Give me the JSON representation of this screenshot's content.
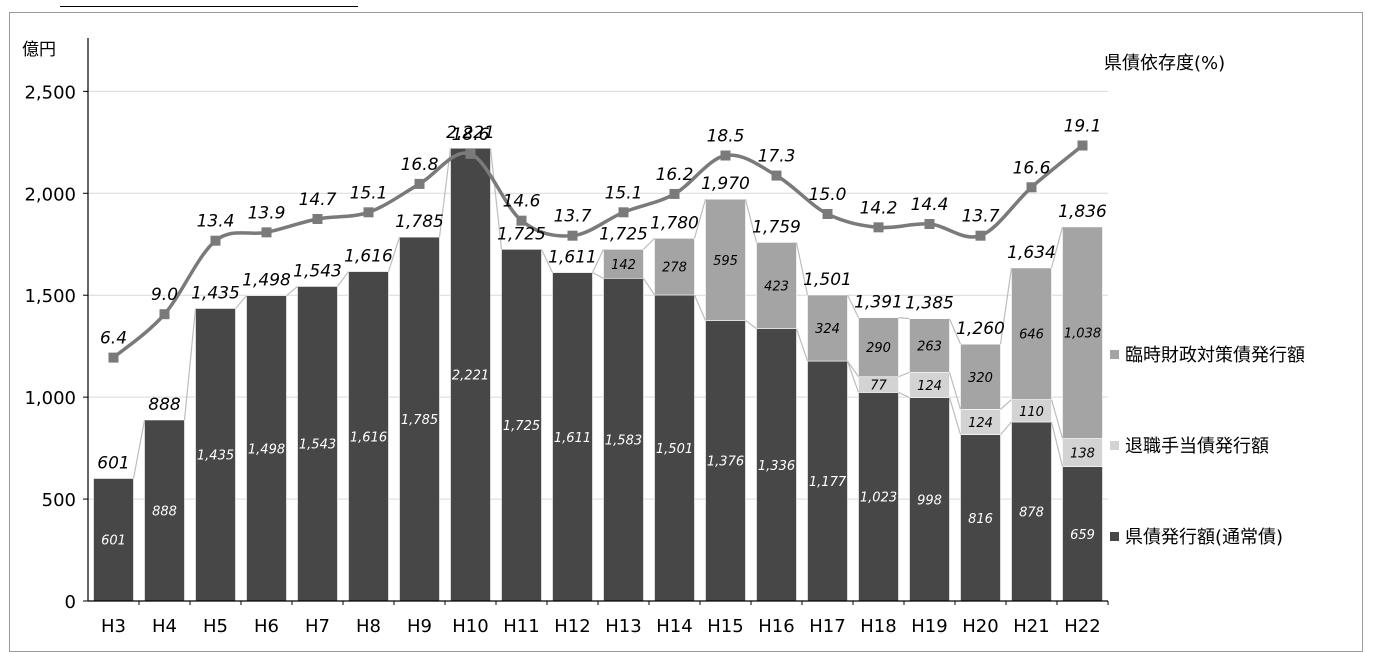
{
  "chart_data": {
    "type": "bar",
    "stacked": true,
    "y_unit_label": "億円",
    "ylim": [
      0,
      2850
    ],
    "yticks": [
      0,
      500,
      1000,
      1500,
      2000,
      2500
    ],
    "ytick_labels": [
      "0",
      "500",
      "1,000",
      "1,500",
      "2,000",
      "2,500"
    ],
    "grid": true,
    "categories": [
      "H3",
      "H4",
      "H5",
      "H6",
      "H7",
      "H8",
      "H9",
      "H10",
      "H11",
      "H12",
      "H13",
      "H14",
      "H15",
      "H16",
      "H17",
      "H18",
      "H19",
      "H20",
      "H21",
      "H22"
    ],
    "series": [
      {
        "name": "県債発行額(通常債)",
        "color": "#474747",
        "values": [
          601,
          888,
          1435,
          1498,
          1543,
          1616,
          1785,
          2221,
          1725,
          1611,
          1583,
          1501,
          1376,
          1336,
          1177,
          1023,
          998,
          816,
          878,
          659
        ],
        "labels": [
          "601",
          "888",
          "1,435",
          "1,498",
          "1,543",
          "1,616",
          "1,785",
          "2,221",
          "1,725",
          "1,611",
          "1,583",
          "1,501",
          "1,376",
          "1,336",
          "1,177",
          "1,023",
          "998",
          "816",
          "878",
          "659"
        ]
      },
      {
        "name": "退職手当債発行額",
        "color": "#d3d3d3",
        "values": [
          0,
          0,
          0,
          0,
          0,
          0,
          0,
          0,
          0,
          0,
          0,
          0,
          0,
          0,
          0,
          77,
          124,
          124,
          110,
          138
        ],
        "labels": [
          "",
          "",
          "",
          "",
          "",
          "",
          "",
          "",
          "",
          "",
          "",
          "",
          "",
          "",
          "",
          "77",
          "124",
          "124",
          "110",
          "138"
        ]
      },
      {
        "name": "臨時財政対策債発行額",
        "color": "#a4a4a4",
        "values": [
          0,
          0,
          0,
          0,
          0,
          0,
          0,
          0,
          0,
          0,
          142,
          278,
          595,
          423,
          324,
          290,
          263,
          320,
          646,
          1038
        ],
        "labels": [
          "",
          "",
          "",
          "",
          "",
          "",
          "",
          "",
          "",
          "",
          "142",
          "278",
          "595",
          "423",
          "324",
          "290",
          "263",
          "320",
          "646",
          "1,038"
        ]
      }
    ],
    "totals": [
      "601",
      "888",
      "1,435",
      "1,498",
      "1,543",
      "1,616",
      "1,785",
      "2,221",
      "1,725",
      "1,611",
      "1,725",
      "1,780",
      "1,970",
      "1,759",
      "1,501",
      "1,391",
      "1,385",
      "1,260",
      "1,634",
      "1,836"
    ],
    "dependency": {
      "name": "県債依存度(%)",
      "color": "#7a7a7a",
      "values": [
        6.4,
        9.0,
        13.4,
        13.9,
        14.7,
        15.1,
        16.8,
        18.6,
        14.6,
        13.7,
        15.1,
        16.2,
        18.5,
        17.3,
        15.0,
        14.2,
        14.4,
        13.7,
        16.6,
        19.1
      ],
      "labels": [
        "6.4",
        "9.0",
        "13.4",
        "13.9",
        "14.7",
        "15.1",
        "16.8",
        "18.6",
        "14.6",
        "13.7",
        "15.1",
        "16.2",
        "18.5",
        "17.3",
        "15.0",
        "14.2",
        "14.4",
        "13.7",
        "16.6",
        "19.1"
      ]
    },
    "legend_position": "right"
  }
}
